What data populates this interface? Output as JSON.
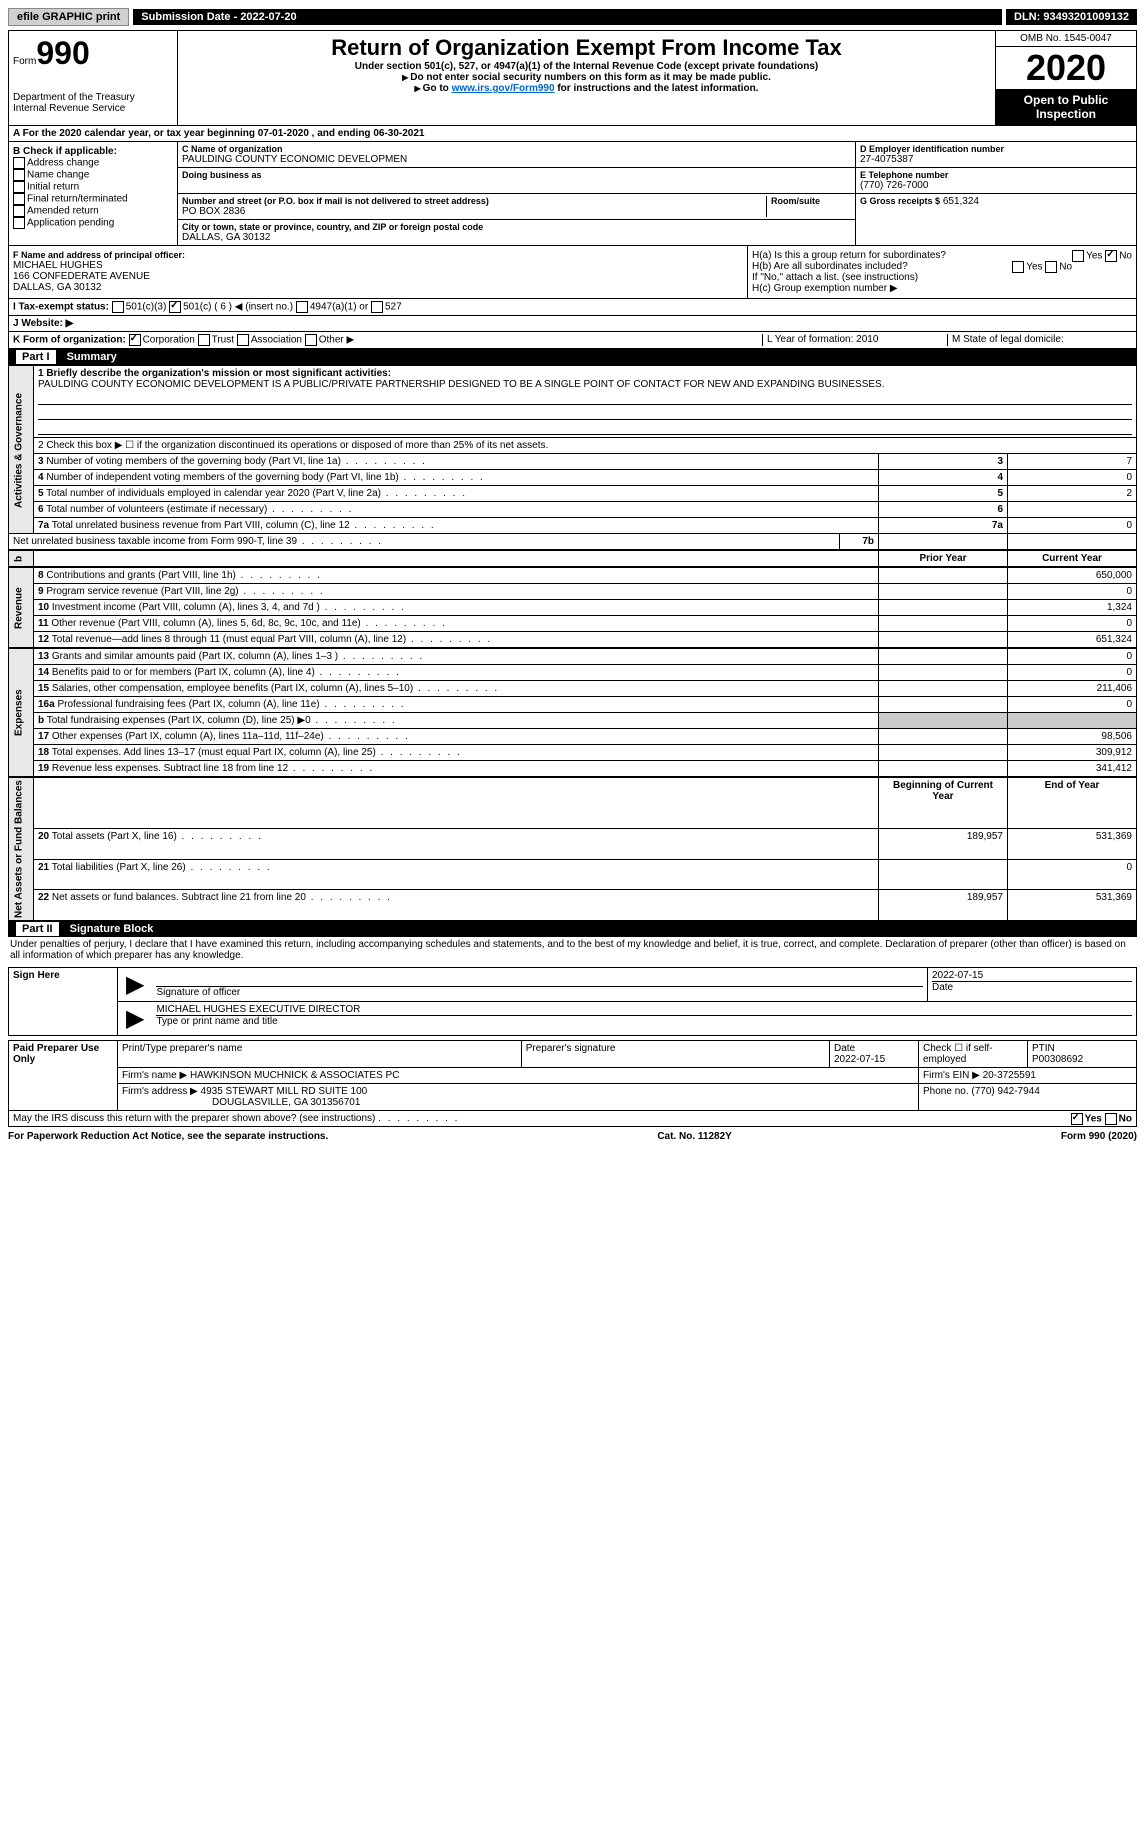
{
  "topbar": {
    "efile": "efile GRAPHIC print",
    "submission": "Submission Date - 2022-07-20",
    "dln": "DLN: 93493201009132"
  },
  "header": {
    "form_label": "Form",
    "form_num": "990",
    "dept": "Department of the Treasury",
    "irs": "Internal Revenue Service",
    "title": "Return of Organization Exempt From Income Tax",
    "sub1": "Under section 501(c), 527, or 4947(a)(1) of the Internal Revenue Code (except private foundations)",
    "sub2": "Do not enter social security numbers on this form as it may be made public.",
    "sub3_pre": "Go to ",
    "sub3_link": "www.irs.gov/Form990",
    "sub3_post": " for instructions and the latest information.",
    "omb": "OMB No. 1545-0047",
    "year": "2020",
    "open": "Open to Public Inspection"
  },
  "sectionA": "A For the 2020 calendar year, or tax year beginning 07-01-2020    , and ending 06-30-2021",
  "B": {
    "label": "B Check if applicable:",
    "items": [
      "Address change",
      "Name change",
      "Initial return",
      "Final return/terminated",
      "Amended return",
      "Application pending"
    ]
  },
  "C": {
    "name_label": "C Name of organization",
    "name": "PAULDING COUNTY ECONOMIC DEVELOPMEN",
    "dba_label": "Doing business as",
    "addr_label": "Number and street (or P.O. box if mail is not delivered to street address)",
    "room_label": "Room/suite",
    "addr": "PO BOX 2836",
    "city_label": "City or town, state or province, country, and ZIP or foreign postal code",
    "city": "DALLAS, GA   30132"
  },
  "D": {
    "label": "D Employer identification number",
    "val": "27-4075387"
  },
  "E": {
    "label": "E Telephone number",
    "val": "(770) 726-7000"
  },
  "G": {
    "label": "G Gross receipts $",
    "val": "651,324"
  },
  "F": {
    "label": "F Name and address of principal officer:",
    "name": "MICHAEL HUGHES",
    "addr1": "166 CONFEDERATE AVENUE",
    "addr2": "DALLAS, GA  30132"
  },
  "H": {
    "a": "H(a)  Is this a group return for subordinates?",
    "b": "H(b)  Are all subordinates included?",
    "b_note": "If \"No,\" attach a list. (see instructions)",
    "c": "H(c)  Group exemption number ▶",
    "yes": "Yes",
    "no": "No"
  },
  "I": {
    "label": "I    Tax-exempt status:",
    "opts": [
      "501(c)(3)",
      "501(c) ( 6 ) ◀ (insert no.)",
      "4947(a)(1) or",
      "527"
    ]
  },
  "J": "J    Website: ▶",
  "K": {
    "label": "K Form of organization:",
    "opts": [
      "Corporation",
      "Trust",
      "Association",
      "Other ▶"
    ]
  },
  "L": "L Year of formation: 2010",
  "M": "M State of legal domicile:",
  "part1": {
    "header": "Part I",
    "title": "Summary",
    "line1_label": "1  Briefly describe the organization's mission or most significant activities:",
    "mission": "PAULDING COUNTY ECONOMIC DEVELOPMENT IS A PUBLIC/PRIVATE PARTNERSHIP DESIGNED TO BE A SINGLE POINT OF CONTACT FOR NEW AND EXPANDING BUSINESSES.",
    "line2": "2   Check this box ▶ ☐  if the organization discontinued its operations or disposed of more than 25% of its net assets.",
    "rows_ag": [
      {
        "n": "3",
        "t": "Number of voting members of the governing body (Part VI, line 1a)",
        "box": "3",
        "v": "7"
      },
      {
        "n": "4",
        "t": "Number of independent voting members of the governing body (Part VI, line 1b)",
        "box": "4",
        "v": "0"
      },
      {
        "n": "5",
        "t": "Total number of individuals employed in calendar year 2020 (Part V, line 2a)",
        "box": "5",
        "v": "2"
      },
      {
        "n": "6",
        "t": "Total number of volunteers (estimate if necessary)",
        "box": "6",
        "v": ""
      },
      {
        "n": "7a",
        "t": "Total unrelated business revenue from Part VIII, column (C), line 12",
        "box": "7a",
        "v": "0"
      },
      {
        "n": "",
        "t": "Net unrelated business taxable income from Form 990-T, line 39",
        "box": "7b",
        "v": ""
      }
    ],
    "prior": "Prior Year",
    "current": "Current Year",
    "rev": [
      {
        "n": "8",
        "t": "Contributions and grants (Part VIII, line 1h)",
        "p": "",
        "c": "650,000"
      },
      {
        "n": "9",
        "t": "Program service revenue (Part VIII, line 2g)",
        "p": "",
        "c": "0"
      },
      {
        "n": "10",
        "t": "Investment income (Part VIII, column (A), lines 3, 4, and 7d )",
        "p": "",
        "c": "1,324"
      },
      {
        "n": "11",
        "t": "Other revenue (Part VIII, column (A), lines 5, 6d, 8c, 9c, 10c, and 11e)",
        "p": "",
        "c": "0"
      },
      {
        "n": "12",
        "t": "Total revenue—add lines 8 through 11 (must equal Part VIII, column (A), line 12)",
        "p": "",
        "c": "651,324"
      }
    ],
    "exp": [
      {
        "n": "13",
        "t": "Grants and similar amounts paid (Part IX, column (A), lines 1–3 )",
        "p": "",
        "c": "0"
      },
      {
        "n": "14",
        "t": "Benefits paid to or for members (Part IX, column (A), line 4)",
        "p": "",
        "c": "0"
      },
      {
        "n": "15",
        "t": "Salaries, other compensation, employee benefits (Part IX, column (A), lines 5–10)",
        "p": "",
        "c": "211,406"
      },
      {
        "n": "16a",
        "t": "Professional fundraising fees (Part IX, column (A), line 11e)",
        "p": "",
        "c": "0"
      },
      {
        "n": "b",
        "t": "Total fundraising expenses (Part IX, column (D), line 25) ▶0",
        "p": "gray",
        "c": "gray"
      },
      {
        "n": "17",
        "t": "Other expenses (Part IX, column (A), lines 11a–11d, 11f–24e)",
        "p": "",
        "c": "98,506"
      },
      {
        "n": "18",
        "t": "Total expenses. Add lines 13–17 (must equal Part IX, column (A), line 25)",
        "p": "",
        "c": "309,912"
      },
      {
        "n": "19",
        "t": "Revenue less expenses. Subtract line 18 from line 12",
        "p": "",
        "c": "341,412"
      }
    ],
    "begin": "Beginning of Current Year",
    "end": "End of Year",
    "net": [
      {
        "n": "20",
        "t": "Total assets (Part X, line 16)",
        "p": "189,957",
        "c": "531,369"
      },
      {
        "n": "21",
        "t": "Total liabilities (Part X, line 26)",
        "p": "",
        "c": "0"
      },
      {
        "n": "22",
        "t": "Net assets or fund balances. Subtract line 21 from line 20",
        "p": "189,957",
        "c": "531,369"
      }
    ],
    "vlabels": {
      "ag": "Activities & Governance",
      "rev": "Revenue",
      "exp": "Expenses",
      "net": "Net Assets or Fund Balances"
    }
  },
  "part2": {
    "header": "Part II",
    "title": "Signature Block",
    "penalty": "Under penalties of perjury, I declare that I have examined this return, including accompanying schedules and statements, and to the best of my knowledge and belief, it is true, correct, and complete. Declaration of preparer (other than officer) is based on all information of which preparer has any knowledge.",
    "sign_here": "Sign Here",
    "sig_officer": "Signature of officer",
    "sig_date": "2022-07-15",
    "date_label": "Date",
    "name_title": "MICHAEL HUGHES  EXECUTIVE DIRECTOR",
    "type_label": "Type or print name and title",
    "paid": "Paid Preparer Use Only",
    "prep_name_label": "Print/Type preparer's name",
    "prep_sig_label": "Preparer's signature",
    "prep_date_label": "Date",
    "prep_date": "2022-07-15",
    "check_if": "Check ☐ if self-employed",
    "ptin_label": "PTIN",
    "ptin": "P00308692",
    "firm_name_label": "Firm's name    ▶",
    "firm_name": "HAWKINSON MUCHNICK & ASSOCIATES PC",
    "firm_ein_label": "Firm's EIN ▶",
    "firm_ein": "20-3725591",
    "firm_addr_label": "Firm's address ▶",
    "firm_addr1": "4935 STEWART MILL RD SUITE 100",
    "firm_addr2": "DOUGLASVILLE, GA  301356701",
    "phone_label": "Phone no.",
    "phone": "(770) 942-7944",
    "may_irs": "May the IRS discuss this return with the preparer shown above? (see instructions)",
    "yes": "Yes",
    "no": "No"
  },
  "footer": {
    "pra": "For Paperwork Reduction Act Notice, see the separate instructions.",
    "cat": "Cat. No. 11282Y",
    "form": "Form 990 (2020)"
  }
}
